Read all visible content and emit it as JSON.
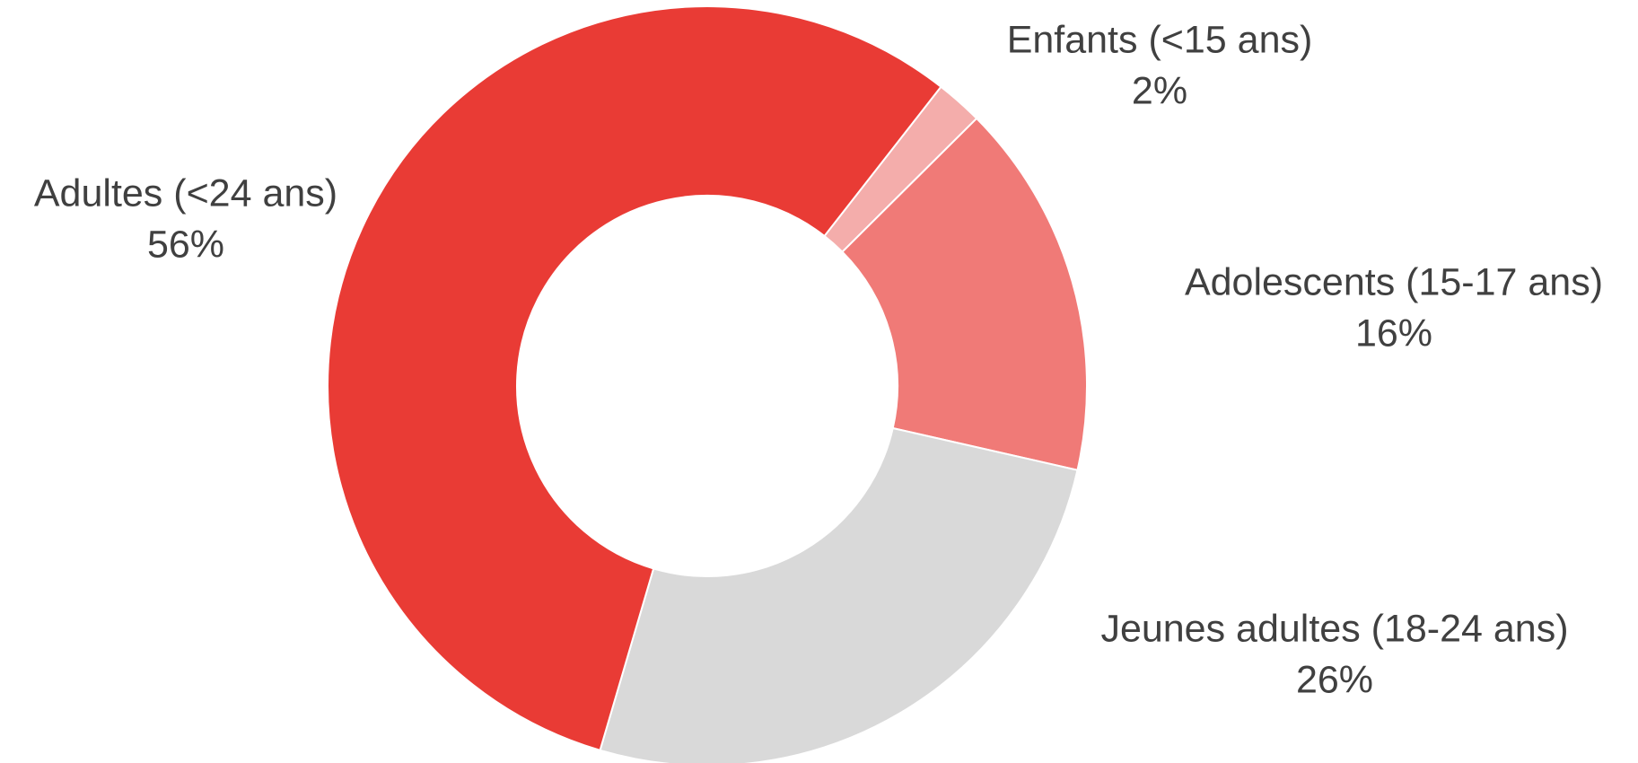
{
  "chart_data": {
    "type": "donut",
    "categories": [
      "Enfants (<15 ans)",
      "Adolescents (15-17 ans)",
      "Jeunes adultes (18-24 ans)",
      "Adultes (<24 ans)"
    ],
    "values": [
      2,
      16,
      26,
      56
    ],
    "value_labels": [
      "2%",
      "16%",
      "26%",
      "56%"
    ],
    "colors": [
      "#f4adab",
      "#f07a77",
      "#d9d9d9",
      "#e93b35"
    ]
  }
}
